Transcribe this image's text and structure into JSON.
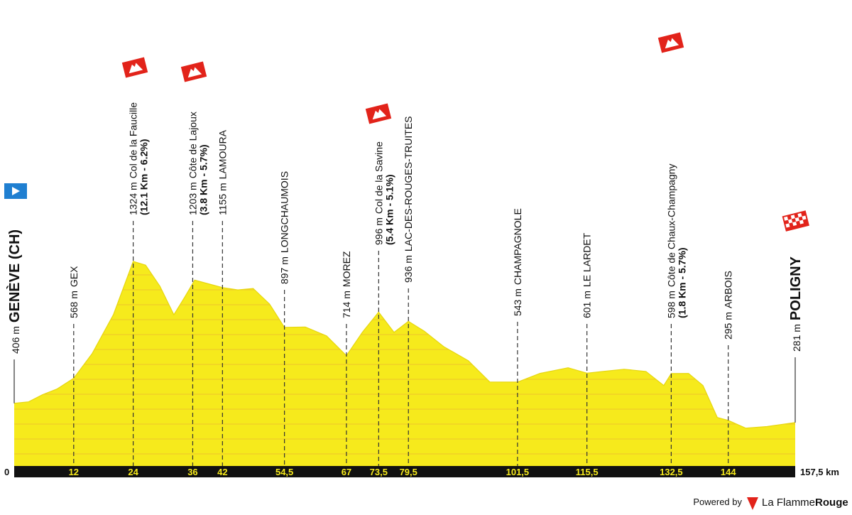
{
  "chart_data": {
    "type": "elevation-profile",
    "xlim": [
      0,
      157.5
    ],
    "ylim": [
      0,
      1400
    ],
    "color": "#f6ea1c",
    "stripe_color": "#e8a23a",
    "profile": {
      "km": [
        0,
        2.9,
        5.7,
        8.6,
        12,
        15.7,
        20,
        24,
        26.5,
        29.4,
        32.2,
        34.4,
        36.4,
        39.4,
        42,
        45.1,
        48.2,
        51.5,
        54.5,
        58.7,
        63,
        67,
        70.2,
        73.5,
        76.6,
        79.5,
        82.7,
        86.6,
        91.6,
        95.9,
        101.5,
        106,
        111.7,
        115.5,
        118.8,
        123,
        127.4,
        131,
        132.5,
        136,
        138.9,
        141.8,
        144,
        147.5,
        151.8,
        154.6,
        157.5
      ],
      "elevation": [
        406,
        415,
        461,
        498,
        568,
        727,
        979,
        1324,
        1300,
        1163,
        979,
        1094,
        1203,
        1177,
        1155,
        1140,
        1149,
        1048,
        897,
        900,
        842,
        714,
        865,
        996,
        865,
        936,
        872,
        773,
        681,
        544,
        543,
        599,
        636,
        601,
        612,
        626,
        612,
        521,
        598,
        599,
        521,
        314,
        295,
        245,
        255,
        268,
        281
      ]
    },
    "xticks": [
      0,
      12,
      24,
      36,
      42,
      {
        "value": 54.5,
        "label": "54,5"
      },
      67,
      {
        "value": 73.5,
        "label": "73,5"
      },
      {
        "value": 79.5,
        "label": "79,5"
      },
      {
        "value": 101.5,
        "label": "101,5"
      },
      {
        "value": 115.5,
        "label": "115,5"
      },
      {
        "value": 132.5,
        "label": "132,5"
      },
      144,
      {
        "value": 157.5,
        "label": "157,5 km"
      }
    ],
    "waypoints": [
      {
        "elevation": "406 m",
        "name": "GENÈVE (CH)"
      },
      {
        "elevation": "568 m",
        "name": "GEX"
      },
      {
        "elevation": "1324 m",
        "name": "Col de la Faucille",
        "climb": "(12.1 Km - 6.2%)"
      },
      {
        "elevation": "1203 m",
        "name": "Côte de Lajoux",
        "climb": "(3.8 Km - 5.7%)"
      },
      {
        "elevation": "1155 m",
        "name": "LAMOURA"
      },
      {
        "elevation": "897 m",
        "name": "LONGCHAUMOIS"
      },
      {
        "elevation": "714 m",
        "name": "MOREZ"
      },
      {
        "elevation": "996 m",
        "name": "Col de la Savine",
        "climb": "(5.4 Km - 5.1%)"
      },
      {
        "elevation": "936 m",
        "name": "LAC-DES-ROUGES-TRUITES"
      },
      {
        "elevation": "543 m",
        "name": "CHAMPAGNOLE"
      },
      {
        "elevation": "601 m",
        "name": "LE LARDET"
      },
      {
        "elevation": "598 m",
        "name": "Côte de Chaux-Champagny",
        "climb": "(1.8 Km - 5.7%)"
      },
      {
        "elevation": "295 m",
        "name": "ARBOIS"
      },
      {
        "elevation": "281 m",
        "name": "POLIGNY"
      }
    ],
    "footer": {
      "powered_by": "Powered by",
      "brand": "La Flamme",
      "brand_bold": "Rouge"
    }
  }
}
